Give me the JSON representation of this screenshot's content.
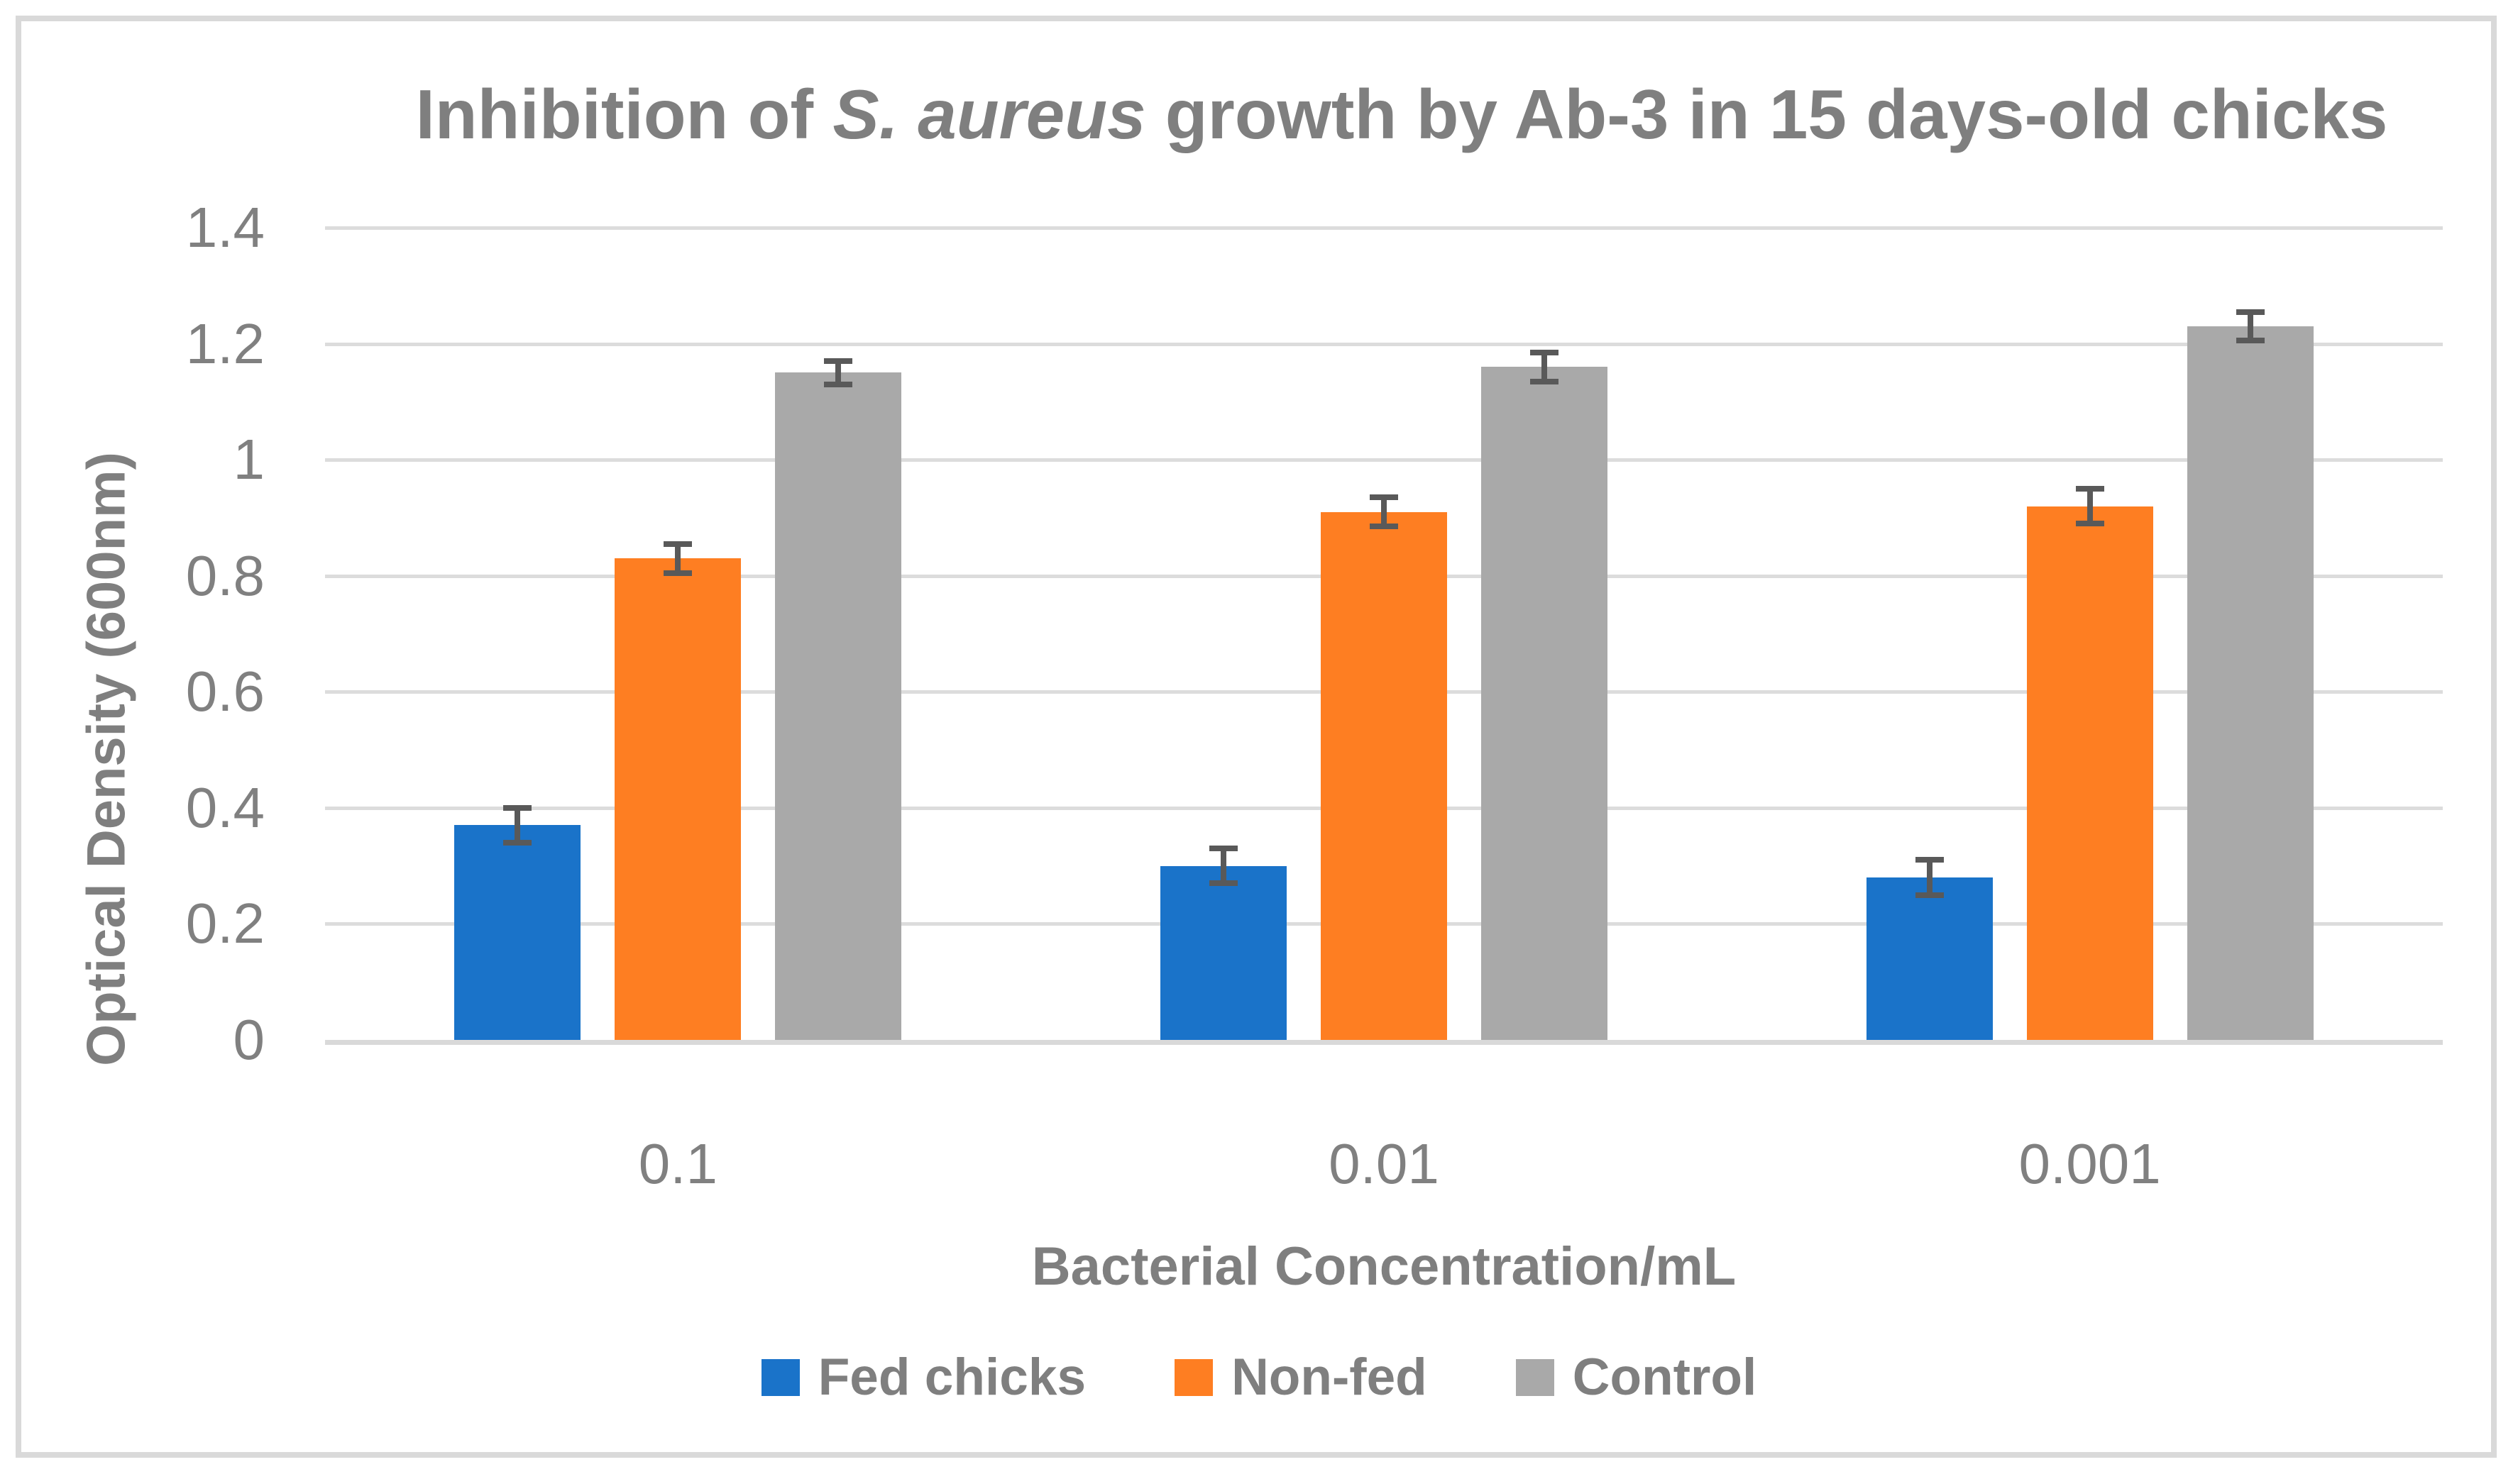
{
  "title": {
    "prefix": "Inhibition of ",
    "italic": "S. aureus",
    "suffix": " growth by Ab-3 in 15 days-old chicks"
  },
  "chart_data": {
    "type": "bar",
    "title": "Inhibition of S. aureus growth by Ab-3 in 15 days-old chicks",
    "categories": [
      "0.1",
      "0.01",
      "0.001"
    ],
    "series": [
      {
        "name": "Fed chicks",
        "color": "#1A73C9",
        "values": [
          0.37,
          0.3,
          0.28
        ],
        "errors": [
          0.03,
          0.03,
          0.03
        ]
      },
      {
        "name": "Non-fed",
        "color": "#FE7E22",
        "values": [
          0.83,
          0.91,
          0.92
        ],
        "errors": [
          0.025,
          0.025,
          0.03
        ]
      },
      {
        "name": "Control",
        "color": "#A9A9A9",
        "values": [
          1.15,
          1.16,
          1.23
        ],
        "errors": [
          0.02,
          0.025,
          0.025
        ]
      }
    ],
    "xlabel": "Bacterial Concentration/mL",
    "ylabel": "Optical Density (600nm)",
    "ylim": [
      0,
      1.4
    ],
    "yticks": [
      0,
      0.2,
      0.4,
      0.6,
      0.8,
      1,
      1.2,
      1.4
    ],
    "ytick_labels": [
      "0",
      "0.2",
      "0.4",
      "0.6",
      "0.8",
      "1",
      "1.2",
      "1.4"
    ],
    "grid": true,
    "legend_position": "bottom",
    "colors": {
      "text": "#7F7F7F",
      "tick_text": "#808080",
      "gridline": "#DCDCDC",
      "axis_line": "#D9D9D9",
      "error_bar": "#595959",
      "frame_border": "#D9D9D9"
    }
  }
}
